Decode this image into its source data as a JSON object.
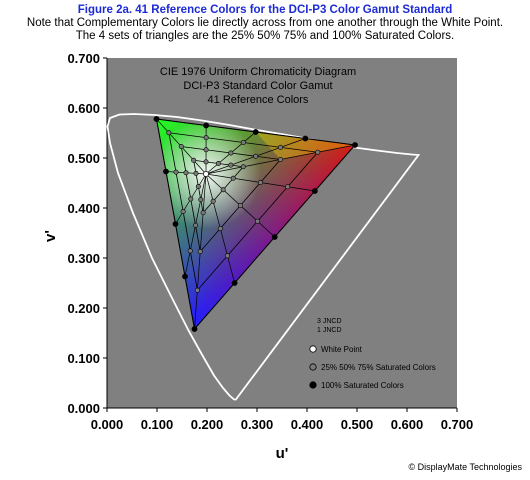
{
  "header": {
    "title": "Figure 2a.   41 Reference Colors for the DCI-P3 Color Gamut Standard",
    "note1": "Note that Complementary Colors lie directly across from one another through the White Point.",
    "note2": "The 4 sets of triangles are the 25% 50% 75% and 100% Saturated Colors."
  },
  "credit": "© DisplayMate Technologies",
  "chart_data": {
    "type": "scatter",
    "title_lines": [
      "CIE 1976 Uniform Chromaticity Diagram",
      "DCI-P3 Standard Color Gamut",
      "41 Reference Colors"
    ],
    "xlabel": "u'",
    "ylabel": "v'",
    "xlim": [
      0.0,
      0.7
    ],
    "ylim": [
      0.0,
      0.7
    ],
    "x_ticks": [
      "0.000",
      "0.100",
      "0.200",
      "0.300",
      "0.400",
      "0.500",
      "0.600",
      "0.700"
    ],
    "y_ticks": [
      "0.000",
      "0.100",
      "0.200",
      "0.300",
      "0.400",
      "0.500",
      "0.600",
      "0.700"
    ],
    "grid": false,
    "background_color": "#808080",
    "primaries": {
      "red": [
        0.496,
        0.526
      ],
      "green": [
        0.099,
        0.578
      ],
      "blue": [
        0.175,
        0.158
      ]
    },
    "white_point": [
      0.198,
      0.468
    ],
    "saturation_levels": [
      0.25,
      0.5,
      0.75,
      1.0
    ],
    "spectral_locus": [
      [
        0.257,
        0.016
      ],
      [
        0.253,
        0.018
      ],
      [
        0.245,
        0.025
      ],
      [
        0.232,
        0.04
      ],
      [
        0.214,
        0.065
      ],
      [
        0.191,
        0.105
      ],
      [
        0.163,
        0.155
      ],
      [
        0.13,
        0.22
      ],
      [
        0.09,
        0.3
      ],
      [
        0.052,
        0.39
      ],
      [
        0.022,
        0.47
      ],
      [
        0.006,
        0.53
      ],
      [
        0.001,
        0.563
      ],
      [
        0.006,
        0.58
      ],
      [
        0.025,
        0.587
      ],
      [
        0.055,
        0.588
      ],
      [
        0.095,
        0.586
      ],
      [
        0.14,
        0.582
      ],
      [
        0.19,
        0.575
      ],
      [
        0.245,
        0.566
      ],
      [
        0.3,
        0.556
      ],
      [
        0.36,
        0.546
      ],
      [
        0.42,
        0.535
      ],
      [
        0.48,
        0.523
      ],
      [
        0.54,
        0.515
      ],
      [
        0.58,
        0.51
      ],
      [
        0.61,
        0.507
      ],
      [
        0.623,
        0.506
      ],
      [
        0.257,
        0.016
      ]
    ],
    "legend": {
      "jncd": [
        "3 JNCD",
        "1 JNCD"
      ],
      "items": [
        {
          "label": "White Point",
          "color": "#ffffff"
        },
        {
          "label": "25% 50% 75% Saturated Colors",
          "color": "#7a7a7a"
        },
        {
          "label": "100% Saturated Colors",
          "color": "#000000"
        }
      ]
    }
  }
}
